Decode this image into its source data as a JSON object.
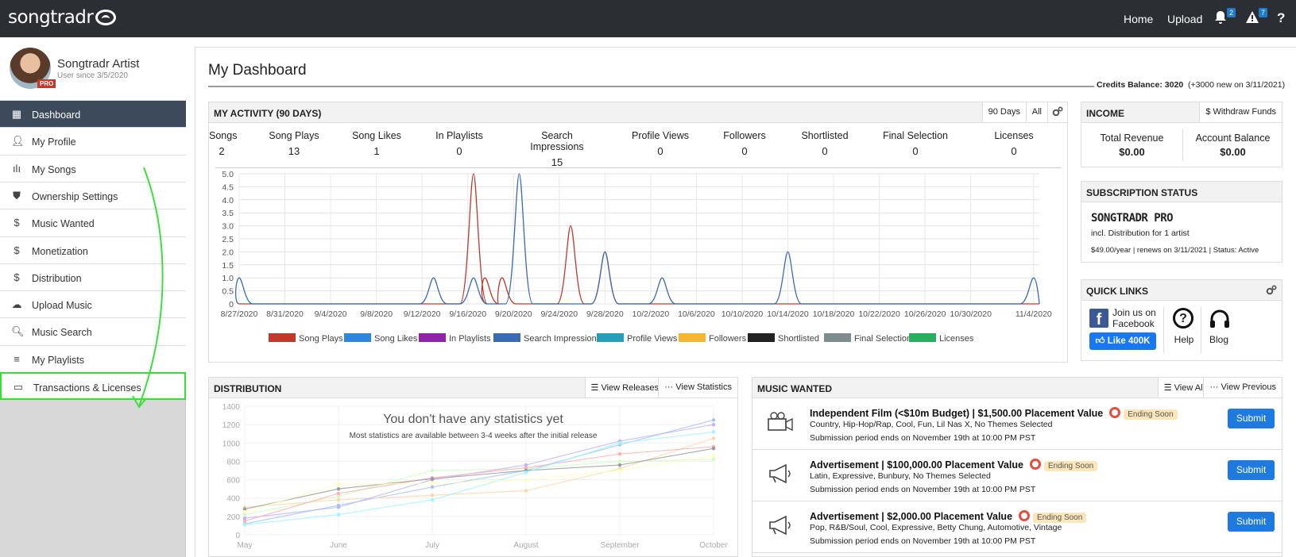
{
  "header": {
    "logo": "songtradr",
    "nav_home": "Home",
    "nav_upload": "Upload",
    "notif_count": "2",
    "alert_count": "7",
    "help": "?"
  },
  "profile": {
    "name": "Songtradr Artist",
    "since": "User since 3/5/2020",
    "badge": "PRO"
  },
  "sidebar": {
    "items": [
      {
        "label": "Dashboard",
        "icon": "grid-icon"
      },
      {
        "label": "My Profile",
        "icon": "user-icon"
      },
      {
        "label": "My Songs",
        "icon": "waveform-icon"
      },
      {
        "label": "Ownership Settings",
        "icon": "shield-icon"
      },
      {
        "label": "Music Wanted",
        "icon": "dollar-icon"
      },
      {
        "label": "Monetization",
        "icon": "dollar-icon"
      },
      {
        "label": "Distribution",
        "icon": "dollar-icon"
      },
      {
        "label": "Upload Music",
        "icon": "cloud-upload-icon"
      },
      {
        "label": "Music Search",
        "icon": "search-icon"
      },
      {
        "label": "My Playlists",
        "icon": "playlist-icon"
      },
      {
        "label": "Transactions & Licenses",
        "icon": "credit-card-icon"
      }
    ]
  },
  "dashboard": {
    "title": "My Dashboard",
    "credits_label": "Credits Balance:",
    "credits_value": "3020",
    "credits_note": "(+3000 new on 3/11/2021)"
  },
  "activity": {
    "title": "MY ACTIVITY (90 DAYS)",
    "btn_90": "90 Days",
    "btn_all": "All",
    "stats": [
      {
        "label": "Songs",
        "value": "2"
      },
      {
        "label": "Song Plays",
        "value": "13"
      },
      {
        "label": "Song Likes",
        "value": "1"
      },
      {
        "label": "In Playlists",
        "value": "0"
      },
      {
        "label": "Search Impressions",
        "value": "15"
      },
      {
        "label": "Profile Views",
        "value": "0"
      },
      {
        "label": "Followers",
        "value": "0"
      },
      {
        "label": "Shortlisted",
        "value": "0"
      },
      {
        "label": "Final Selection",
        "value": "0"
      },
      {
        "label": "Licenses",
        "value": "0"
      }
    ]
  },
  "chart_data": [
    {
      "type": "line",
      "x": [
        "8/27/2020",
        "8/31/2020",
        "9/4/2020",
        "9/8/2020",
        "9/12/2020",
        "9/16/2020",
        "9/20/2020",
        "9/24/2020",
        "9/28/2020",
        "10/2/2020",
        "10/6/2020",
        "10/10/2020",
        "10/14/2020",
        "10/18/2020",
        "10/22/2020",
        "10/26/2020",
        "10/30/2020",
        "11/4/2020"
      ],
      "ylim": [
        0,
        5
      ],
      "yticks": [
        "0",
        "0.5",
        "1.0",
        "1.5",
        "2.0",
        "2.5",
        "3.0",
        "3.5",
        "4.0",
        "4.5",
        "5.0"
      ],
      "grid": true,
      "legend_position": "bottom",
      "series": [
        {
          "name": "Song Plays",
          "color": "#c0392b",
          "points": [
            [
              20.5,
              5
            ],
            [
              21.5,
              1
            ],
            [
              23,
              1
            ],
            [
              29,
              3
            ],
            [
              32,
              2
            ]
          ]
        },
        {
          "name": "Song Likes",
          "color": "#2e86de",
          "points": []
        },
        {
          "name": "In Playlists",
          "color": "#8e24aa",
          "points": []
        },
        {
          "name": "Search Impressions",
          "color": "#3a6bb5",
          "points": [
            [
              0,
              1
            ],
            [
              17,
              1
            ],
            [
              20.5,
              1
            ],
            [
              24.5,
              5
            ],
            [
              32,
              2
            ],
            [
              37,
              1
            ],
            [
              48,
              2
            ],
            [
              69.5,
              1
            ]
          ]
        },
        {
          "name": "Profile Views",
          "color": "#26a0b8",
          "points": []
        },
        {
          "name": "Followers",
          "color": "#f5b731",
          "points": []
        },
        {
          "name": "Shortlisted",
          "color": "#222222",
          "points": []
        },
        {
          "name": "Final Selection",
          "color": "#7f8c8d",
          "points": []
        },
        {
          "name": "Licenses",
          "color": "#27ae60",
          "points": []
        }
      ]
    },
    {
      "type": "line",
      "categories": [
        "May",
        "June",
        "July",
        "August",
        "September",
        "October"
      ],
      "ylim": [
        0,
        1400
      ],
      "yticks": [
        "0",
        "200",
        "400",
        "600",
        "800",
        "1000",
        "1200",
        "1400"
      ],
      "overlay_title": "You don't have any statistics yet",
      "overlay_subtitle": "Most statistics are available between 3-4 weeks after the initial release",
      "series": [
        {
          "color": "#a0c4ff",
          "values": [
            120,
            320,
            520,
            700,
            980,
            1250
          ]
        },
        {
          "color": "#ffd6a5",
          "values": [
            300,
            380,
            430,
            480,
            720,
            1050
          ]
        },
        {
          "color": "#caffbf",
          "values": [
            220,
            420,
            700,
            720,
            800,
            820
          ]
        },
        {
          "color": "#bdb2ff",
          "values": [
            180,
            300,
            600,
            760,
            1020,
            1200
          ]
        },
        {
          "color": "#ffadad",
          "values": [
            150,
            450,
            620,
            730,
            880,
            960
          ]
        },
        {
          "color": "#999999",
          "values": [
            280,
            500,
            610,
            700,
            760,
            940
          ]
        },
        {
          "color": "#9bf6ff",
          "values": [
            110,
            220,
            380,
            680,
            1000,
            1120
          ]
        },
        {
          "color": "#fdffb6",
          "values": [
            250,
            550,
            560,
            600,
            700,
            860
          ]
        }
      ]
    }
  ],
  "income": {
    "title": "INCOME",
    "withdraw": "$ Withdraw Funds",
    "total_label": "Total Revenue",
    "total_value": "$0.00",
    "balance_label": "Account Balance",
    "balance_value": "$0.00"
  },
  "subscription": {
    "title": "SUBSCRIPTION STATUS",
    "plan": "SONGTRADR PRO",
    "desc": "incl. Distribution for 1 artist",
    "details": "$49.00/year | renews on 3/11/2021 | Status: Active"
  },
  "quicklinks": {
    "title": "QUICK LINKS",
    "fb_text": "Join us on Facebook",
    "like": "Like 400K",
    "help": "Help",
    "blog": "Blog"
  },
  "distribution": {
    "title": "DISTRIBUTION",
    "view_releases": "View Releases",
    "view_stats": "View Statistics"
  },
  "music_wanted": {
    "title": "MUSIC WANTED",
    "view_all": "View All",
    "view_prev": "View Previous",
    "ending": "Ending Soon",
    "submit": "Submit",
    "items": [
      {
        "title": "Independent Film (<$10m Budget) | $1,500.00 Placement Value",
        "tags": "Country, Hip-Hop/Rap, Cool, Fun, Lil Nas X, No Themes Selected",
        "period": "Submission period ends on November 19th at 10:00 PM PST",
        "icon": "camera-icon"
      },
      {
        "title": "Advertisement | $100,000.00 Placement Value",
        "tags": "Latin, Expressive, Bunbury, No Themes Selected",
        "period": "Submission period ends on November 19th at 10:00 PM PST",
        "icon": "megaphone-icon"
      },
      {
        "title": "Advertisement | $2,000.00 Placement Value",
        "tags": "Pop, R&B/Soul, Cool, Expressive, Betty Chung, Automotive, Vintage",
        "period": "Submission period ends on November 19th at 10:00 PM PST",
        "icon": "megaphone-icon"
      }
    ]
  }
}
